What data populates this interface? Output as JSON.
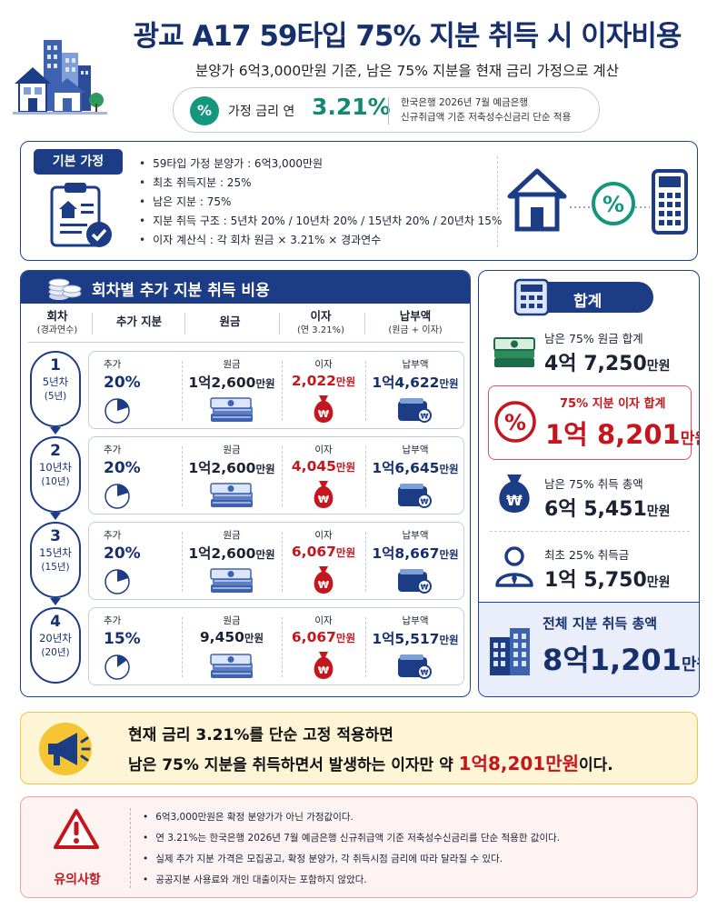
{
  "header": {
    "title": "광교 A17 59타입 75% 지분 취득 시 이자비용",
    "subtitle": "분양가 6억3,000만원 기준, 남은 75% 지분을 현재 금리 가정으로 계산",
    "rate_icon": "%",
    "rate_label": "가정 금리  연",
    "rate_value": "3.21%",
    "rate_note_1": "한국은행 2026년 7월 예금은행",
    "rate_note_2": "신규취급액 기준 저축성수신금리 단순 적용"
  },
  "basic": {
    "tag": "기본 가정",
    "items": [
      "59타입 가정 분양가 : 6억3,000만원",
      "최초 취득지분 : 25%",
      "남은 지분 : 75%",
      "지분 취득 구조 : 5년차 20% / 10년차 20% / 15년차 20% / 20년차 15%",
      "이자 계산식 : 각 회차 원금 × 3.21% × 경과연수"
    ]
  },
  "rounds_section": {
    "title": "회차별 추가 지분 취득 비용",
    "col_round": "회차",
    "col_round_sub": "(경과연수)",
    "col_share": "추가 지분",
    "col_principal": "원금",
    "col_interest": "이자",
    "col_interest_sub": "(연 3.21%)",
    "col_payment": "납부액",
    "col_payment_sub": "(원금 + 이자)",
    "label_share": "추가",
    "label_principal": "원금",
    "label_interest": "이자",
    "label_payment": "납부액",
    "rounds": [
      {
        "num": "1",
        "year": "5년차",
        "elapsed": "(5년)",
        "share": "20%",
        "share_frac": 0.2,
        "principal": "1억2,600",
        "principal_unit": "만원",
        "interest": "2,022",
        "interest_unit": "만원",
        "payment": "1억4,622",
        "payment_unit": "만원"
      },
      {
        "num": "2",
        "year": "10년차",
        "elapsed": "(10년)",
        "share": "20%",
        "share_frac": 0.2,
        "principal": "1억2,600",
        "principal_unit": "만원",
        "interest": "4,045",
        "interest_unit": "만원",
        "payment": "1억6,645",
        "payment_unit": "만원"
      },
      {
        "num": "3",
        "year": "15년차",
        "elapsed": "(15년)",
        "share": "20%",
        "share_frac": 0.2,
        "principal": "1억2,600",
        "principal_unit": "만원",
        "interest": "6,067",
        "interest_unit": "만원",
        "payment": "1억8,667",
        "payment_unit": "만원"
      },
      {
        "num": "4",
        "year": "20년차",
        "elapsed": "(20년)",
        "share": "15%",
        "share_frac": 0.15,
        "principal": "9,450",
        "principal_unit": "만원",
        "interest": "6,067",
        "interest_unit": "만원",
        "payment": "1억5,517",
        "payment_unit": "만원"
      }
    ]
  },
  "summary": {
    "title": "합계",
    "principal_label": "남은 75% 원금 합계",
    "principal_value": "4억 7,250",
    "principal_unit": "만원",
    "interest_label": "75% 지분 이자 합계",
    "interest_value": "1억 8,201",
    "interest_unit": "만원",
    "acq_label": "남은 75% 취득 총액",
    "acq_value": "6억 5,451",
    "acq_unit": "만원",
    "initial_label": "최초 25% 취득금",
    "initial_value": "1억 5,750",
    "initial_unit": "만원",
    "total_label": "전체 지분 취득 총액",
    "total_value": "8억1,201",
    "total_unit": "만원"
  },
  "callout": {
    "line1": "현재 금리 3.21%를 단순 고정 적용하면",
    "line2_prefix": "남은 75% 지분을 취득하면서 발생하는 이자만 약 ",
    "line2_highlight": "1억8,201만원",
    "line2_suffix": "이다."
  },
  "caution": {
    "label": "유의사항",
    "items": [
      "6억3,000만원은 확정 분양가가 아닌 가정값이다.",
      "연 3.21%는 한국은행 2026년 7월 예금은행 신규취급액 기준 저축성수신금리를 단순 적용한 값이다.",
      "실제 추가 지분 가격은 모집공고, 확정 분양가, 각 취득시점 금리에 따라 달라질 수 있다.",
      "공공지분 사용료와 개인 대출이자는 포함하지 않았다."
    ]
  },
  "colors": {
    "navy": "#1c3d85",
    "red": "#c4161c",
    "green": "#13896f",
    "callout_bg": "#fef5d6",
    "caution_bg": "#fdf3f3"
  },
  "icons": {
    "header": "city-buildings-icon",
    "basic": "clipboard-check-icon",
    "basic_right": [
      "house-icon",
      "percent-icon",
      "calculator-icon"
    ],
    "section": "coins-icon",
    "principal": "cash-stack-icon",
    "interest": "money-bag-icon",
    "payment": "wallet-icon",
    "summary": [
      "cash-stack-icon",
      "percent-circle-icon",
      "money-bag-icon",
      "person-icon",
      "building-icon"
    ],
    "callout": "megaphone-icon",
    "caution": "warning-triangle-icon"
  }
}
